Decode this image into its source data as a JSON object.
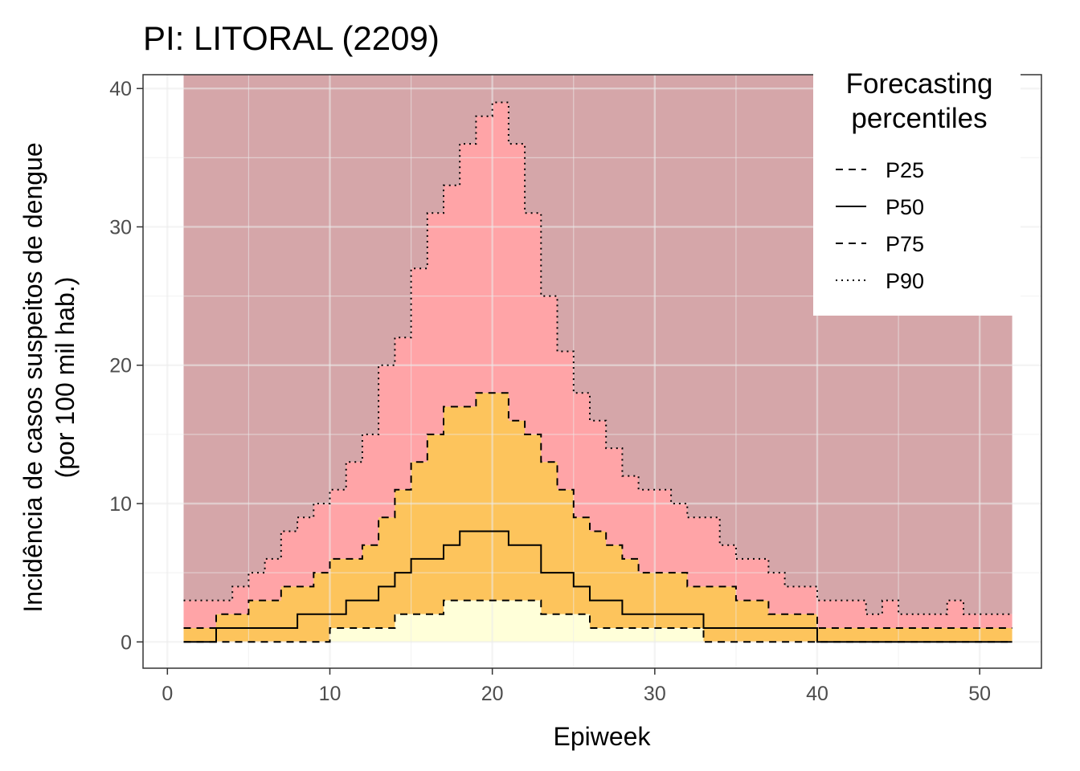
{
  "chart_data": {
    "type": "area",
    "title": "PI: LITORAL (2209)",
    "xlabel": "Epiweek",
    "ylabel": [
      "Incidência de casos suspeitos de dengue",
      "(por 100 mil hab.)"
    ],
    "xlim": [
      -1.5,
      53.8
    ],
    "ylim": [
      -1.9,
      41
    ],
    "xticks": [
      0,
      10,
      20,
      30,
      40,
      50
    ],
    "yticks": [
      0,
      10,
      20,
      30,
      40
    ],
    "grid": true,
    "legend": {
      "title": [
        "Forecasting",
        "percentiles"
      ],
      "placement": "top-right",
      "entries": [
        {
          "name": "P25",
          "dash": "dashed"
        },
        {
          "name": "P50",
          "dash": "solid"
        },
        {
          "name": "P75",
          "dash": "dashed"
        },
        {
          "name": "P90",
          "dash": "dotted"
        }
      ]
    },
    "band_colors": {
      "below_p25": "#FFFFD9",
      "p25_p75": "#FDC45C",
      "p75_p90": "#FFA4A7",
      "above_p90": "#D5A6A9"
    },
    "band_top": 41,
    "x": [
      1,
      2,
      3,
      4,
      5,
      6,
      7,
      8,
      9,
      10,
      11,
      12,
      13,
      14,
      15,
      16,
      17,
      18,
      19,
      20,
      21,
      22,
      23,
      24,
      25,
      26,
      27,
      28,
      29,
      30,
      31,
      32,
      33,
      34,
      35,
      36,
      37,
      38,
      39,
      40,
      41,
      42,
      43,
      44,
      45,
      46,
      47,
      48,
      49,
      50,
      51,
      52
    ],
    "series": [
      {
        "name": "P25",
        "dash": "dashed",
        "values": [
          0,
          0,
          0,
          0,
          0,
          0,
          0,
          0,
          0,
          1,
          1,
          1,
          1,
          2,
          2,
          2,
          3,
          3,
          3,
          3,
          3,
          3,
          2,
          2,
          2,
          1,
          1,
          1,
          1,
          1,
          1,
          1,
          0,
          0,
          0,
          0,
          0,
          0,
          0,
          0,
          0,
          0,
          0,
          0,
          0,
          0,
          0,
          0,
          0,
          0,
          0,
          0
        ]
      },
      {
        "name": "P50",
        "dash": "solid",
        "values": [
          0,
          0,
          1,
          1,
          1,
          1,
          1,
          2,
          2,
          2,
          3,
          3,
          4,
          5,
          6,
          6,
          7,
          8,
          8,
          8,
          7,
          7,
          5,
          5,
          4,
          3,
          3,
          2,
          2,
          2,
          2,
          2,
          1,
          1,
          1,
          1,
          1,
          1,
          1,
          0,
          0,
          0,
          0,
          0,
          0,
          0,
          0,
          0,
          0,
          0,
          0,
          0
        ]
      },
      {
        "name": "P75",
        "dash": "dashed",
        "values": [
          1,
          1,
          2,
          2,
          3,
          3,
          4,
          4,
          5,
          6,
          6,
          7,
          9,
          11,
          13,
          15,
          17,
          17,
          18,
          18,
          16,
          15,
          13,
          11,
          9,
          8,
          7,
          6,
          5,
          5,
          5,
          4,
          4,
          4,
          3,
          3,
          2,
          2,
          2,
          1,
          1,
          1,
          1,
          1,
          1,
          1,
          1,
          1,
          1,
          1,
          1,
          1
        ]
      },
      {
        "name": "P90",
        "dash": "dotted",
        "values": [
          3,
          3,
          3,
          4,
          5,
          6,
          8,
          9,
          10,
          11,
          13,
          15,
          20,
          22,
          27,
          31,
          33,
          36,
          38,
          39,
          36,
          31,
          25,
          21,
          18,
          16,
          14,
          12,
          11,
          11,
          10,
          9,
          9,
          7,
          6,
          6,
          5,
          4,
          4,
          3,
          3,
          3,
          2,
          3,
          2,
          2,
          2,
          3,
          2,
          2,
          2,
          2
        ]
      }
    ]
  }
}
